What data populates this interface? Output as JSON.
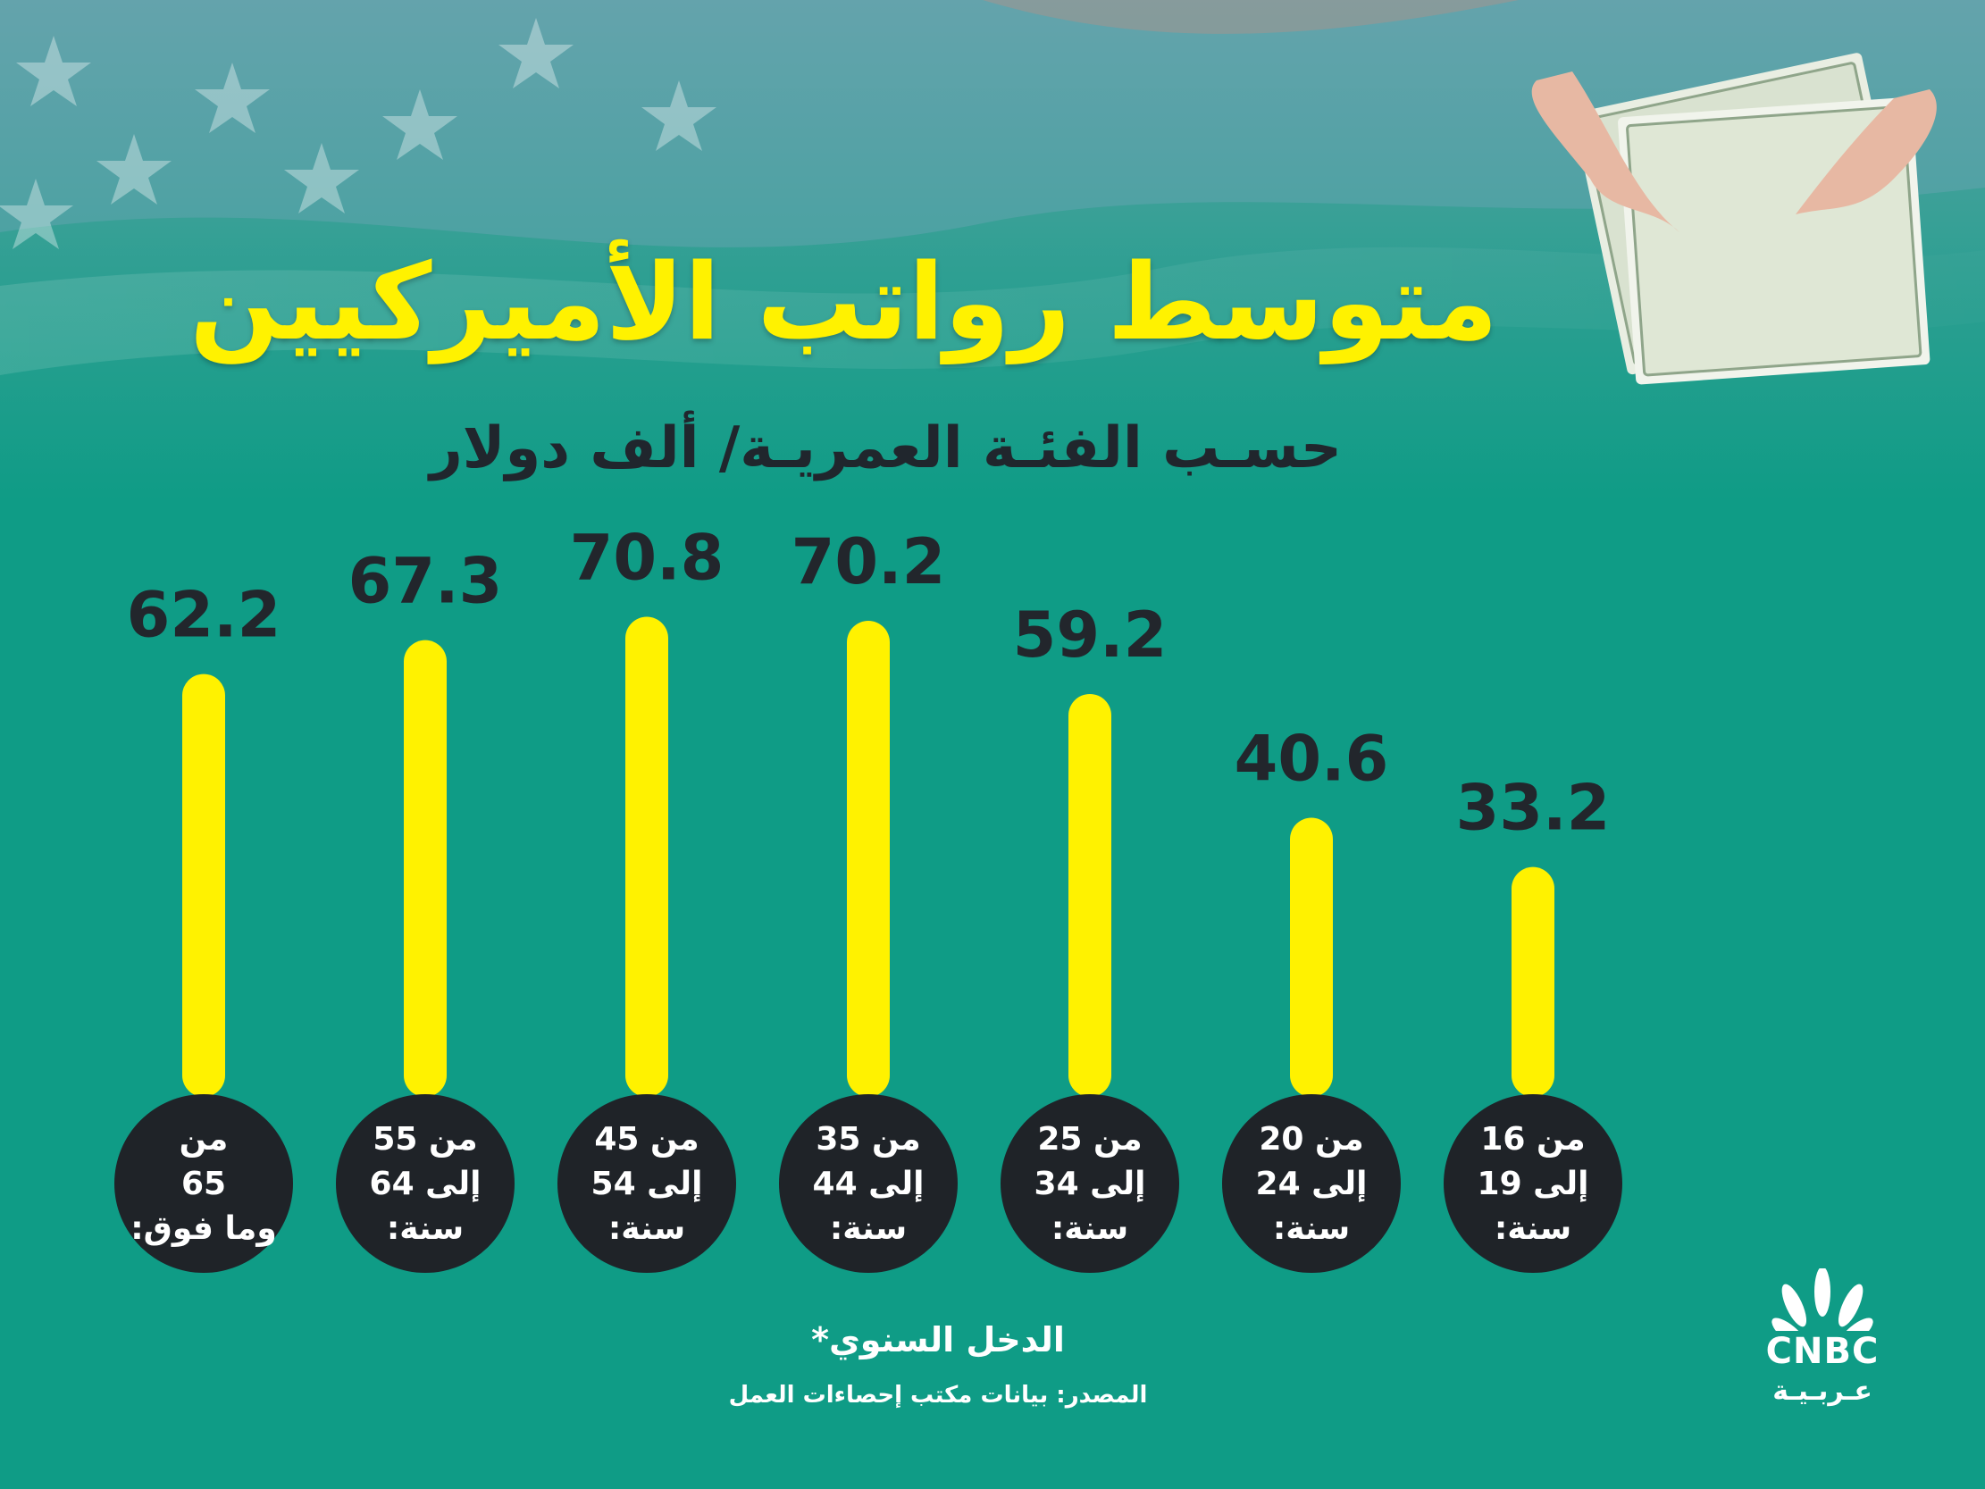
{
  "header": {
    "title": "متوسط رواتب الأميركيين",
    "subtitle": "حسـب الفئـة العمريـة/ ألف دولار"
  },
  "footer": {
    "note": "الدخل السنوي*",
    "source": "المصدر: بيانات مكتب إحصاءات العمل"
  },
  "logo": {
    "brand": "CNBC",
    "sub": "عـربـيـة"
  },
  "colors": {
    "background": "#0f9c86",
    "bar": "#fff200",
    "title": "#fff200",
    "circle": "#1f2328",
    "value_text": "#22262c"
  },
  "chart_data": {
    "type": "bar",
    "categories": [
      [
        "من",
        "65",
        "وما فوق:"
      ],
      [
        "من 55",
        "إلى 64",
        "سنة:"
      ],
      [
        "من 45",
        "إلى 54",
        "سنة:"
      ],
      [
        "من 35",
        "إلى 44",
        "سنة:"
      ],
      [
        "من 25",
        "إلى 34",
        "سنة:"
      ],
      [
        "من 20",
        "إلى 24",
        "سنة:"
      ],
      [
        "من 16",
        "إلى 19",
        "سنة:"
      ]
    ],
    "values": [
      62.2,
      67.3,
      70.8,
      70.2,
      59.2,
      40.6,
      33.2
    ],
    "value_labels": [
      "62.2",
      "67.3",
      "70.8",
      "70.2",
      "59.2",
      "40.6",
      "33.2"
    ],
    "title": "متوسط رواتب الأميركيين",
    "subtitle": "حسـب الفئـة العمريـة/ ألف دولار",
    "grid": false,
    "legend": "none"
  }
}
